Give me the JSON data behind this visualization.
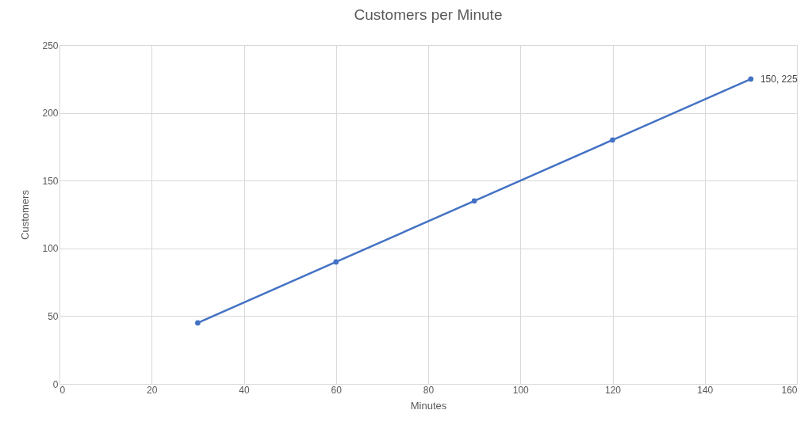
{
  "chart_data": {
    "type": "line",
    "title": "Customers per Minute",
    "xlabel": "Minutes",
    "ylabel": "Customers",
    "x": [
      30,
      60,
      90,
      120,
      150
    ],
    "series": [
      {
        "color": "#4472c4",
        "values": [
          45,
          90,
          135,
          180,
          225
        ]
      }
    ],
    "xlim": [
      0,
      160
    ],
    "xticks": [
      0,
      20,
      40,
      60,
      80,
      100,
      120,
      140,
      160
    ],
    "ylim": [
      0,
      250
    ],
    "yticks": [
      0,
      50,
      100,
      150,
      200,
      250
    ],
    "grid": true,
    "marker": "circle",
    "line_style": "solid",
    "annotations": [
      {
        "text": "150, 225",
        "x": 150,
        "y": 225
      }
    ]
  }
}
